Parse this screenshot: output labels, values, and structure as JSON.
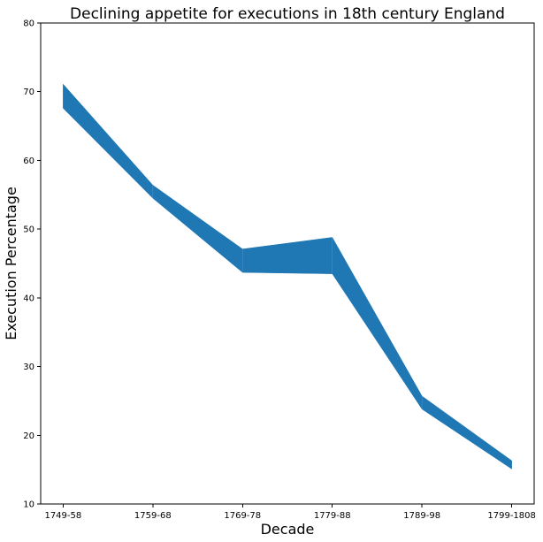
{
  "chart_data": {
    "type": "area",
    "title": "Declining appetite for executions in 18th century England",
    "xlabel": "Decade",
    "ylabel": "Execution Percentage",
    "categories": [
      "1749-58",
      "1759-68",
      "1769-78",
      "1779-88",
      "1789-98",
      "1799-1808"
    ],
    "series": [
      {
        "role": "upper",
        "values": [
          71.1,
          56.4,
          47.1,
          48.8,
          25.7,
          16.3
        ]
      },
      {
        "role": "lower",
        "values": [
          67.6,
          54.5,
          43.7,
          43.5,
          23.8,
          15.1
        ]
      }
    ],
    "ylim": [
      10,
      80
    ],
    "yticks": [
      10,
      20,
      30,
      40,
      50,
      60,
      70,
      80
    ],
    "grid": false,
    "legend": "none",
    "fill_color": "#1f77b4"
  }
}
